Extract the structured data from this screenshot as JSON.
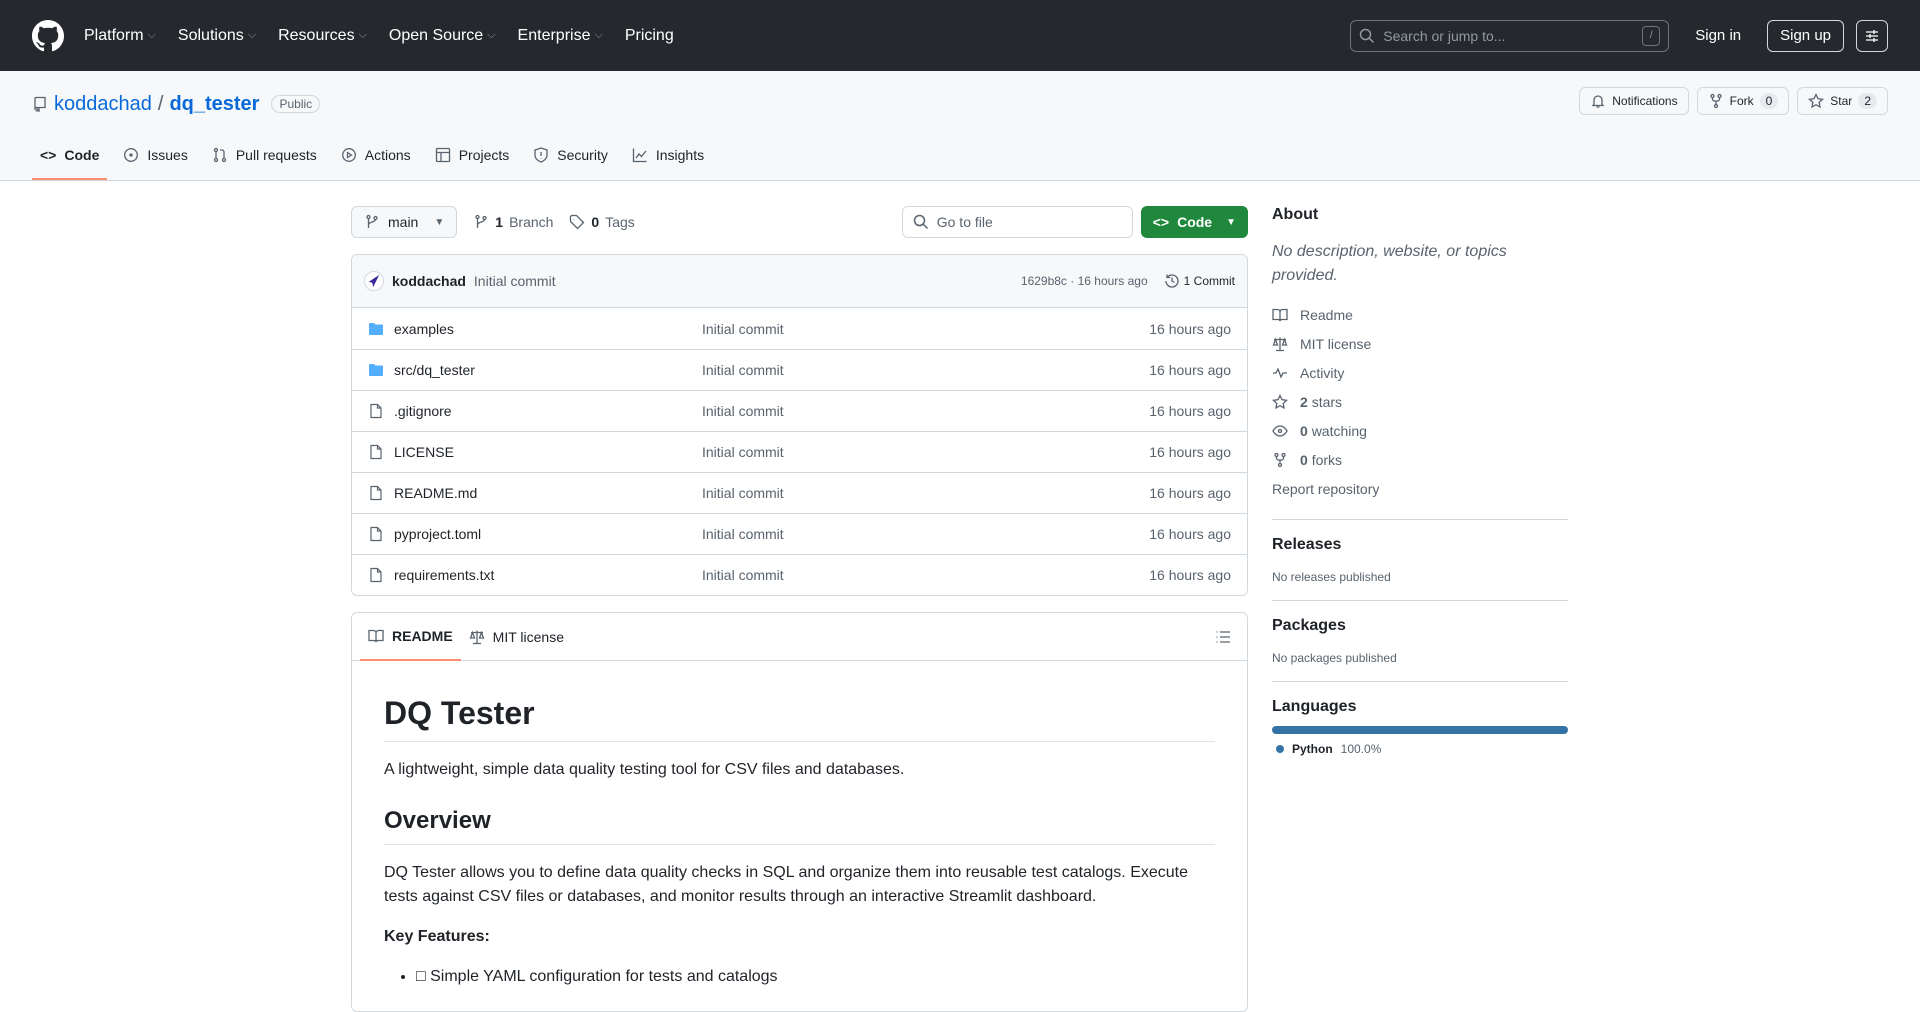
{
  "nav": {
    "menu": [
      "Platform",
      "Solutions",
      "Resources",
      "Open Source",
      "Enterprise",
      "Pricing"
    ],
    "search_placeholder": "Search or jump to...",
    "search_shortcut": "/",
    "sign_in": "Sign in",
    "sign_up": "Sign up"
  },
  "repo": {
    "owner": "koddachad",
    "separator": "/",
    "name": "dq_tester",
    "visibility": "Public",
    "notifications_label": "Notifications",
    "fork_label": "Fork",
    "fork_count": "0",
    "star_label": "Star",
    "star_count": "2",
    "tabs": [
      "Code",
      "Issues",
      "Pull requests",
      "Actions",
      "Projects",
      "Security",
      "Insights"
    ],
    "active_tab": "Code"
  },
  "toolbar": {
    "branch": "main",
    "branch_count": "1",
    "branch_label": "Branch",
    "tag_count": "0",
    "tag_label": "Tags",
    "go_to_file": "Go to file",
    "code_button": "Code"
  },
  "commit": {
    "author": "koddachad",
    "message": "Initial commit",
    "hash_time": "1629b8c · 16 hours ago",
    "commits": "1 Commit"
  },
  "files": [
    {
      "name": "examples",
      "type": "folder",
      "message": "Initial commit",
      "time": "16 hours ago"
    },
    {
      "name": "src/dq_tester",
      "type": "folder",
      "message": "Initial commit",
      "time": "16 hours ago"
    },
    {
      "name": ".gitignore",
      "type": "file",
      "message": "Initial commit",
      "time": "16 hours ago"
    },
    {
      "name": "LICENSE",
      "type": "file",
      "message": "Initial commit",
      "time": "16 hours ago"
    },
    {
      "name": "README.md",
      "type": "file",
      "message": "Initial commit",
      "time": "16 hours ago"
    },
    {
      "name": "pyproject.toml",
      "type": "file",
      "message": "Initial commit",
      "time": "16 hours ago"
    },
    {
      "name": "requirements.txt",
      "type": "file",
      "message": "Initial commit",
      "time": "16 hours ago"
    }
  ],
  "readme": {
    "tabs": [
      "README",
      "MIT license"
    ],
    "h1": "DQ Tester",
    "tagline": "A lightweight, simple data quality testing tool for CSV files and databases.",
    "h2": "Overview",
    "overview": "DQ Tester allows you to define data quality checks in SQL and organize them into reusable test catalogs. Execute tests against CSV files or databases, and monitor results through an interactive Streamlit dashboard.",
    "key_features": "Key Features:",
    "features": [
      "□ Simple YAML configuration for tests and catalogs"
    ]
  },
  "sidebar": {
    "about_title": "About",
    "description": "No description, website, or topics provided.",
    "readme": "Readme",
    "license": "MIT license",
    "activity": "Activity",
    "stars_count": "2",
    "stars_label": "stars",
    "watching_count": "0",
    "watching_label": "watching",
    "forks_count": "0",
    "forks_label": "forks",
    "report": "Report repository",
    "releases_title": "Releases",
    "releases_text": "No releases published",
    "packages_title": "Packages",
    "packages_text": "No packages published",
    "languages_title": "Languages",
    "languages": [
      {
        "name": "Python",
        "percent": "100.0%",
        "share": 100,
        "color": "#3572A5"
      }
    ]
  },
  "colors": {
    "accent": "#0969da",
    "code_button": "#1f883d",
    "tab_underline": "#fd8c73",
    "folder": "#54aeff"
  }
}
